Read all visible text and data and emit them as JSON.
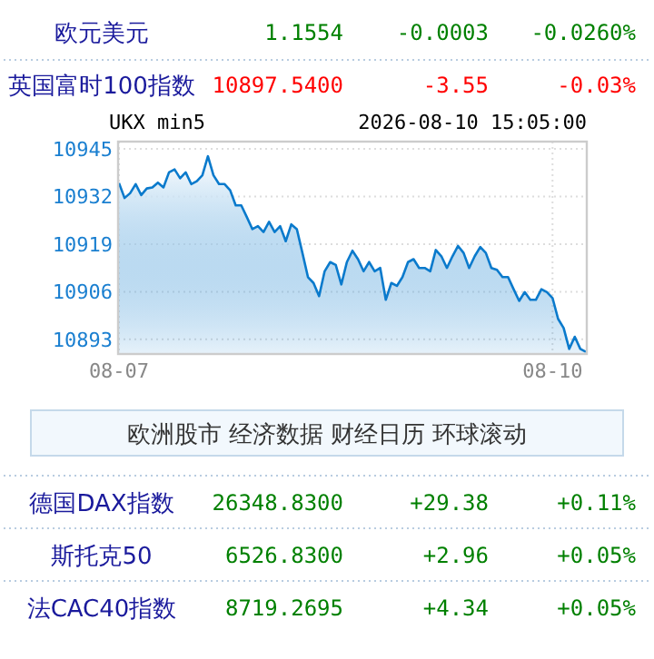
{
  "chart_data": {
    "type": "area",
    "title": "UKX min5",
    "subtitle": "2026-08-10 15:05:00",
    "categories": [
      "08-07",
      null,
      null,
      null,
      null,
      null,
      null,
      null,
      null,
      null,
      null,
      null,
      null,
      null,
      null,
      null,
      null,
      null,
      null,
      null,
      null,
      null,
      null,
      null,
      null,
      null,
      null,
      null,
      null,
      null,
      null,
      null,
      null,
      null,
      null,
      null,
      null,
      null,
      null,
      null,
      null,
      null,
      null,
      null,
      null,
      null,
      null,
      null,
      null,
      null,
      null,
      null,
      null,
      null,
      null,
      null,
      null,
      null,
      null,
      null,
      null,
      null,
      null,
      null,
      null,
      null,
      null,
      null,
      null,
      null,
      null,
      null,
      null,
      null,
      null,
      null,
      null,
      null,
      "08-10",
      null,
      null,
      null,
      null,
      null,
      null
    ],
    "series": [
      {
        "color": "#0a7acc",
        "values": [
          10935.7,
          10931.6,
          10932.9,
          10935.4,
          10932.4,
          10934.2,
          10934.5,
          10935.8,
          10934.5,
          10938.6,
          10939.4,
          10937.0,
          10938.6,
          10935.4,
          10936.2,
          10937.8,
          10943.0,
          10937.8,
          10935.4,
          10935.4,
          10933.7,
          10929.6,
          10929.6,
          10926.4,
          10923.1,
          10923.9,
          10922.3,
          10925.1,
          10922.3,
          10923.9,
          10919.8,
          10924.4,
          10923.1,
          10916.6,
          10910.0,
          10908.4,
          10904.8,
          10911.6,
          10914.1,
          10913.3,
          10908.0,
          10914.1,
          10917.2,
          10914.9,
          10911.6,
          10914.1,
          10911.6,
          10912.5,
          10903.8,
          10908.4,
          10907.6,
          10910.0,
          10914.1,
          10914.9,
          10912.5,
          10912.5,
          10911.6,
          10917.4,
          10915.7,
          10912.5,
          10915.7,
          10918.5,
          10916.6,
          10912.5,
          10915.7,
          10918.2,
          10916.6,
          10912.5,
          10912.0,
          10910.0,
          10910.0,
          10906.7,
          10903.5,
          10905.9,
          10903.8,
          10903.8,
          10906.7,
          10905.9,
          10904.3,
          10898.6,
          10896.1,
          10890.4,
          10893.7,
          10890.4,
          10889.6
        ]
      }
    ],
    "ylim": [
      10889,
      10947
    ],
    "yticks": [
      10893,
      10906,
      10919,
      10932,
      10945
    ],
    "grid": true,
    "marker": "none",
    "line_style": "solid",
    "annotations": [
      "欧元美元",
      "1.1554",
      "-0.0003",
      "-0.0260%",
      "英国富时100指数",
      "10897.5400",
      "-3.55",
      "-0.03%",
      "欧洲股市 经济数据 财经日历 环球滚动",
      "德国DAX指数",
      "26348.8300",
      "+29.38",
      "+0.11%",
      "斯托克50",
      "6526.8300",
      "+2.96",
      "+0.05%",
      "法CAC40指数",
      "8719.2695",
      "+4.34",
      "+0.05%"
    ]
  }
}
